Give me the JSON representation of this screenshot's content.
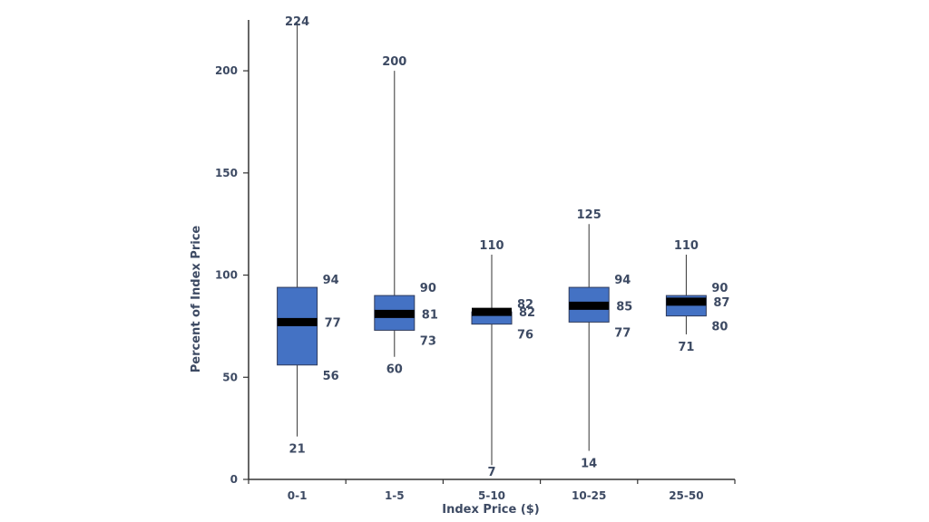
{
  "chart_data": {
    "type": "boxplot",
    "title": "",
    "xlabel": "Index Price ($)",
    "ylabel": "Percent of Index Price",
    "ylim": [
      0,
      224
    ],
    "yticks": [
      0,
      50,
      100,
      150,
      200
    ],
    "grid": false,
    "legend": "none",
    "categories": [
      "0-1",
      "1-5",
      "5-10",
      "10-25",
      "25-50"
    ],
    "boxes": [
      {
        "category": "0-1",
        "min": 21,
        "q1": 56,
        "median": 77,
        "q3": 94,
        "max": 224
      },
      {
        "category": "1-5",
        "min": 60,
        "q1": 73,
        "median": 81,
        "q3": 90,
        "max": 200
      },
      {
        "category": "5-10",
        "min": 7,
        "q1": 76,
        "median": 82,
        "q3": 82,
        "max": 110
      },
      {
        "category": "10-25",
        "min": 14,
        "q1": 77,
        "median": 85,
        "q3": 94,
        "max": 125
      },
      {
        "category": "25-50",
        "min": 71,
        "q1": 80,
        "median": 87,
        "q3": 90,
        "max": 110
      }
    ],
    "colors": {
      "box_fill": "#4472c4",
      "box_stroke": "#2f3b5c",
      "median": "#000000",
      "axis": "#333333",
      "text": "#3d4a63"
    }
  }
}
